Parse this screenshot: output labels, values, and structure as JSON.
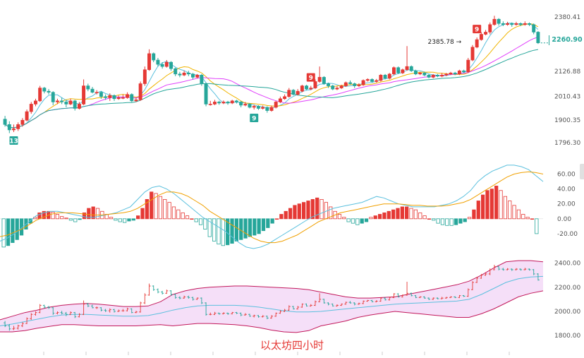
{
  "caption": "以太坊四小时",
  "colors": {
    "up": "#e53935",
    "down": "#26a69a",
    "ma_fast": "#5bc0de",
    "ma_mid": "#f0b400",
    "ma_slow": "#e040fb",
    "ma_long": "#26a69a",
    "macd_dif": "#5bc0de",
    "macd_dea": "#f0a000",
    "boll_band": "#c2185b",
    "boll_fill": "#f3d9f7"
  },
  "price_axis": {
    "ticks": [
      "2380.41",
      "2126.88",
      "2010.43",
      "1900.35",
      "1796.30"
    ],
    "current_price": "2260.90",
    "high_annotation": "2385.78"
  },
  "td_markers": [
    {
      "label": "13",
      "kind": "down"
    },
    {
      "label": "9",
      "kind": "down"
    },
    {
      "label": "9",
      "kind": "up"
    },
    {
      "label": "9",
      "kind": "up"
    }
  ],
  "macd_axis": {
    "ticks": [
      "60.00",
      "40.00",
      "20.00",
      "0.00",
      "-20.00"
    ]
  },
  "boll_axis": {
    "ticks": [
      "2400.00",
      "2200.00",
      "2000.00",
      "1800.00"
    ]
  },
  "chart_data": [
    {
      "type": "candlestick",
      "title": "",
      "yticks": [
        2380.41,
        2126.88,
        2010.43,
        1900.35,
        1796.3
      ],
      "ylim": [
        1730,
        2420
      ],
      "candles": [
        [
          1905,
          1880,
          1920,
          1870
        ],
        [
          1880,
          1855,
          1895,
          1840
        ],
        [
          1855,
          1860,
          1880,
          1845
        ],
        [
          1860,
          1880,
          1890,
          1850
        ],
        [
          1880,
          1900,
          1910,
          1870
        ],
        [
          1900,
          1940,
          1950,
          1895
        ],
        [
          1940,
          1975,
          1985,
          1930
        ],
        [
          1975,
          1990,
          2000,
          1965
        ],
        [
          1990,
          2050,
          2060,
          1985
        ],
        [
          2050,
          2035,
          2055,
          2025
        ],
        [
          2035,
          2030,
          2045,
          2020
        ],
        [
          2030,
          1985,
          2035,
          1970
        ],
        [
          1985,
          1990,
          2000,
          1975
        ],
        [
          1990,
          1985,
          2005,
          1975
        ],
        [
          1985,
          1975,
          1995,
          1960
        ],
        [
          1975,
          1990,
          2000,
          1970
        ],
        [
          1990,
          1955,
          1995,
          1945
        ],
        [
          1955,
          1975,
          1985,
          1950
        ],
        [
          1975,
          2060,
          2090,
          1970
        ],
        [
          2060,
          2045,
          2070,
          2035
        ],
        [
          2045,
          2030,
          2055,
          2025
        ],
        [
          2030,
          2030,
          2040,
          2020
        ],
        [
          2030,
          2010,
          2035,
          2000
        ],
        [
          2010,
          2005,
          2020,
          1995
        ],
        [
          2005,
          2015,
          2025,
          1990
        ],
        [
          2015,
          2000,
          2020,
          1990
        ],
        [
          2000,
          2005,
          2015,
          1995
        ],
        [
          2005,
          2005,
          2020,
          1998
        ],
        [
          2005,
          2020,
          2030,
          2000
        ],
        [
          2020,
          1990,
          2025,
          1985
        ],
        [
          1990,
          1995,
          2005,
          1985
        ],
        [
          1995,
          2070,
          2080,
          1990
        ],
        [
          2070,
          2135,
          2150,
          2060
        ],
        [
          2135,
          2210,
          2230,
          2130
        ],
        [
          2210,
          2180,
          2215,
          2170
        ],
        [
          2180,
          2160,
          2190,
          2150
        ],
        [
          2160,
          2150,
          2170,
          2140
        ],
        [
          2150,
          2170,
          2180,
          2145
        ],
        [
          2170,
          2140,
          2175,
          2130
        ],
        [
          2140,
          2115,
          2145,
          2105
        ],
        [
          2115,
          2110,
          2125,
          2100
        ],
        [
          2110,
          2120,
          2130,
          2105
        ],
        [
          2120,
          2115,
          2130,
          2105
        ],
        [
          2115,
          2100,
          2120,
          2090
        ],
        [
          2100,
          2110,
          2115,
          2095
        ],
        [
          2110,
          2070,
          2115,
          2060
        ],
        [
          2070,
          1975,
          2075,
          1965
        ],
        [
          1975,
          1975,
          1990,
          1968
        ],
        [
          1975,
          1985,
          1995,
          1970
        ],
        [
          1985,
          1980,
          1990,
          1972
        ],
        [
          1980,
          1985,
          1992,
          1975
        ],
        [
          1985,
          1980,
          1990,
          1972
        ],
        [
          1980,
          1990,
          1995,
          1975
        ],
        [
          1990,
          1985,
          1995,
          1978
        ],
        [
          1985,
          1970,
          1990,
          1960
        ],
        [
          1970,
          1975,
          1985,
          1965
        ],
        [
          1975,
          1960,
          1980,
          1955
        ],
        [
          1960,
          1965,
          1972,
          1950
        ],
        [
          1965,
          1955,
          1970,
          1948
        ],
        [
          1955,
          1960,
          1968,
          1950
        ],
        [
          1960,
          1945,
          1965,
          1935
        ],
        [
          1945,
          1960,
          1968,
          1940
        ],
        [
          1960,
          1985,
          1990,
          1955
        ],
        [
          1985,
          2000,
          2010,
          1980
        ],
        [
          2000,
          2010,
          2020,
          1995
        ],
        [
          2010,
          2040,
          2050,
          2005
        ],
        [
          2040,
          2020,
          2045,
          2015
        ],
        [
          2020,
          2035,
          2045,
          2015
        ],
        [
          2035,
          2060,
          2065,
          2030
        ],
        [
          2060,
          2045,
          2065,
          2040
        ],
        [
          2045,
          2050,
          2060,
          2040
        ],
        [
          2050,
          2080,
          2090,
          2045
        ],
        [
          2080,
          2100,
          2150,
          2075
        ],
        [
          2100,
          2070,
          2105,
          2065
        ],
        [
          2070,
          2060,
          2075,
          2050
        ],
        [
          2060,
          2045,
          2065,
          2040
        ],
        [
          2045,
          2050,
          2058,
          2040
        ],
        [
          2050,
          2060,
          2065,
          2045
        ],
        [
          2060,
          2075,
          2080,
          2055
        ],
        [
          2075,
          2070,
          2085,
          2065
        ],
        [
          2070,
          2060,
          2075,
          2050
        ],
        [
          2060,
          2065,
          2072,
          2055
        ],
        [
          2065,
          2085,
          2090,
          2060
        ],
        [
          2085,
          2090,
          2095,
          2080
        ],
        [
          2090,
          2080,
          2095,
          2075
        ],
        [
          2080,
          2085,
          2092,
          2075
        ],
        [
          2085,
          2110,
          2115,
          2080
        ],
        [
          2110,
          2095,
          2115,
          2090
        ],
        [
          2095,
          2115,
          2120,
          2090
        ],
        [
          2115,
          2145,
          2150,
          2110
        ],
        [
          2145,
          2120,
          2150,
          2115
        ],
        [
          2120,
          2135,
          2140,
          2115
        ],
        [
          2135,
          2150,
          2245,
          2130
        ],
        [
          2150,
          2130,
          2155,
          2125
        ],
        [
          2130,
          2115,
          2135,
          2110
        ],
        [
          2115,
          2120,
          2125,
          2110
        ],
        [
          2120,
          2110,
          2125,
          2105
        ],
        [
          2110,
          2100,
          2115,
          2095
        ],
        [
          2100,
          2110,
          2115,
          2095
        ],
        [
          2110,
          2105,
          2115,
          2100
        ],
        [
          2105,
          2110,
          2120,
          2100
        ],
        [
          2110,
          2115,
          2120,
          2105
        ],
        [
          2115,
          2120,
          2125,
          2110
        ],
        [
          2120,
          2115,
          2125,
          2110
        ],
        [
          2115,
          2130,
          2135,
          2110
        ],
        [
          2130,
          2125,
          2135,
          2120
        ],
        [
          2125,
          2180,
          2190,
          2120
        ],
        [
          2180,
          2240,
          2250,
          2175
        ],
        [
          2240,
          2275,
          2285,
          2235
        ],
        [
          2275,
          2300,
          2310,
          2270
        ],
        [
          2300,
          2310,
          2320,
          2295
        ],
        [
          2310,
          2345,
          2355,
          2300
        ],
        [
          2345,
          2370,
          2386,
          2340
        ],
        [
          2370,
          2350,
          2375,
          2340
        ],
        [
          2350,
          2345,
          2360,
          2338
        ],
        [
          2345,
          2350,
          2358,
          2340
        ],
        [
          2350,
          2345,
          2355,
          2335
        ],
        [
          2345,
          2350,
          2358,
          2340
        ],
        [
          2350,
          2345,
          2355,
          2338
        ],
        [
          2345,
          2350,
          2360,
          2340
        ],
        [
          2350,
          2345,
          2355,
          2338
        ],
        [
          2345,
          2310,
          2350,
          2300
        ],
        [
          2310,
          2260,
          2315,
          2255
        ]
      ]
    },
    {
      "type": "bar",
      "title": "",
      "yticks": [
        60,
        40,
        20,
        0,
        -20
      ],
      "ylim": [
        -40,
        70
      ],
      "values": [
        -38,
        -36,
        -32,
        -28,
        -22,
        -14,
        -6,
        2,
        8,
        10,
        10,
        9,
        6,
        3,
        1,
        -2,
        -4,
        -1,
        8,
        14,
        16,
        14,
        10,
        6,
        2,
        -2,
        -4,
        -5,
        -3,
        -2,
        4,
        14,
        26,
        36,
        34,
        30,
        26,
        22,
        16,
        12,
        8,
        4,
        0,
        -4,
        -8,
        -14,
        -24,
        -30,
        -34,
        -36,
        -35,
        -33,
        -30,
        -28,
        -26,
        -24,
        -22,
        -20,
        -16,
        -12,
        -6,
        0,
        6,
        10,
        14,
        18,
        20,
        22,
        24,
        26,
        28,
        26,
        22,
        16,
        10,
        6,
        2,
        -4,
        -6,
        -8,
        -6,
        -4,
        2,
        4,
        6,
        8,
        10,
        12,
        14,
        16,
        16,
        14,
        12,
        8,
        4,
        0,
        -2,
        -6,
        -8,
        -9,
        -9,
        -8,
        -6,
        -4,
        2,
        12,
        24,
        32,
        38,
        40,
        44,
        38,
        30,
        24,
        18,
        12,
        6,
        2,
        0,
        -20
      ],
      "series": [
        {
          "values": [
            -30,
            -26,
            -20,
            -12,
            -4,
            4,
            8,
            10,
            10,
            8,
            6,
            4,
            2,
            2,
            4,
            6,
            8,
            12,
            16,
            26,
            36,
            42,
            44,
            40,
            34,
            26,
            18,
            10,
            2,
            -4,
            -10,
            -16,
            -24,
            -32,
            -38,
            -40,
            -38,
            -34,
            -28,
            -22,
            -16,
            -10,
            -4,
            2,
            6,
            10,
            14,
            16,
            18,
            20,
            22,
            26,
            30,
            28,
            24,
            20,
            18,
            16,
            16,
            16,
            16,
            18,
            20,
            24,
            30,
            38,
            50,
            58,
            64,
            68,
            72,
            72,
            70,
            66,
            58,
            50
          ]
        },
        {
          "values": [
            -24,
            -22,
            -18,
            -14,
            -8,
            -2,
            2,
            6,
            8,
            8,
            8,
            7,
            6,
            5,
            5,
            6,
            7,
            8,
            10,
            14,
            20,
            26,
            32,
            36,
            36,
            34,
            30,
            24,
            18,
            10,
            4,
            -2,
            -8,
            -14,
            -20,
            -26,
            -30,
            -32,
            -32,
            -30,
            -26,
            -22,
            -16,
            -10,
            -4,
            0,
            4,
            8,
            10,
            12,
            14,
            16,
            18,
            20,
            20,
            20,
            19,
            18,
            18,
            17,
            17,
            17,
            18,
            20,
            22,
            26,
            32,
            38,
            44,
            50,
            56,
            60,
            62,
            63,
            62,
            60
          ]
        }
      ]
    },
    {
      "type": "line",
      "title": "",
      "yticks": [
        2400,
        2200,
        2000,
        1800
      ],
      "ylim": [
        1760,
        2450
      ],
      "series": [
        {
          "values": [
            1930,
            1960,
            1990,
            2010,
            2035,
            2050,
            2060,
            2065,
            2060,
            2050,
            2040,
            2040,
            2045,
            2080,
            2140,
            2170,
            2190,
            2200,
            2205,
            2210,
            2210,
            2205,
            2200,
            2195,
            2190,
            2180,
            2160,
            2140,
            2120,
            2110,
            2110,
            2115,
            2120,
            2140,
            2160,
            2180,
            2200,
            2220,
            2250,
            2300,
            2360,
            2410,
            2420,
            2420,
            2410
          ]
        },
        {
          "values": [
            1880,
            1895,
            1915,
            1935,
            1955,
            1970,
            1975,
            1975,
            1970,
            1965,
            1960,
            1960,
            1965,
            1985,
            2010,
            2030,
            2045,
            2050,
            2050,
            2050,
            2045,
            2035,
            2020,
            2005,
            1995,
            1995,
            2000,
            2010,
            2020,
            2030,
            2040,
            2050,
            2060,
            2065,
            2070,
            2075,
            2080,
            2085,
            2100,
            2140,
            2190,
            2240,
            2270,
            2285,
            2290
          ]
        },
        {
          "values": [
            1830,
            1830,
            1840,
            1860,
            1875,
            1890,
            1890,
            1885,
            1880,
            1880,
            1880,
            1880,
            1885,
            1890,
            1880,
            1890,
            1900,
            1900,
            1895,
            1890,
            1880,
            1865,
            1845,
            1830,
            1825,
            1840,
            1880,
            1900,
            1920,
            1950,
            1970,
            1985,
            2000,
            1990,
            1980,
            1970,
            1960,
            1950,
            1950,
            1980,
            2020,
            2070,
            2120,
            2150,
            2170
          ]
        }
      ]
    }
  ]
}
